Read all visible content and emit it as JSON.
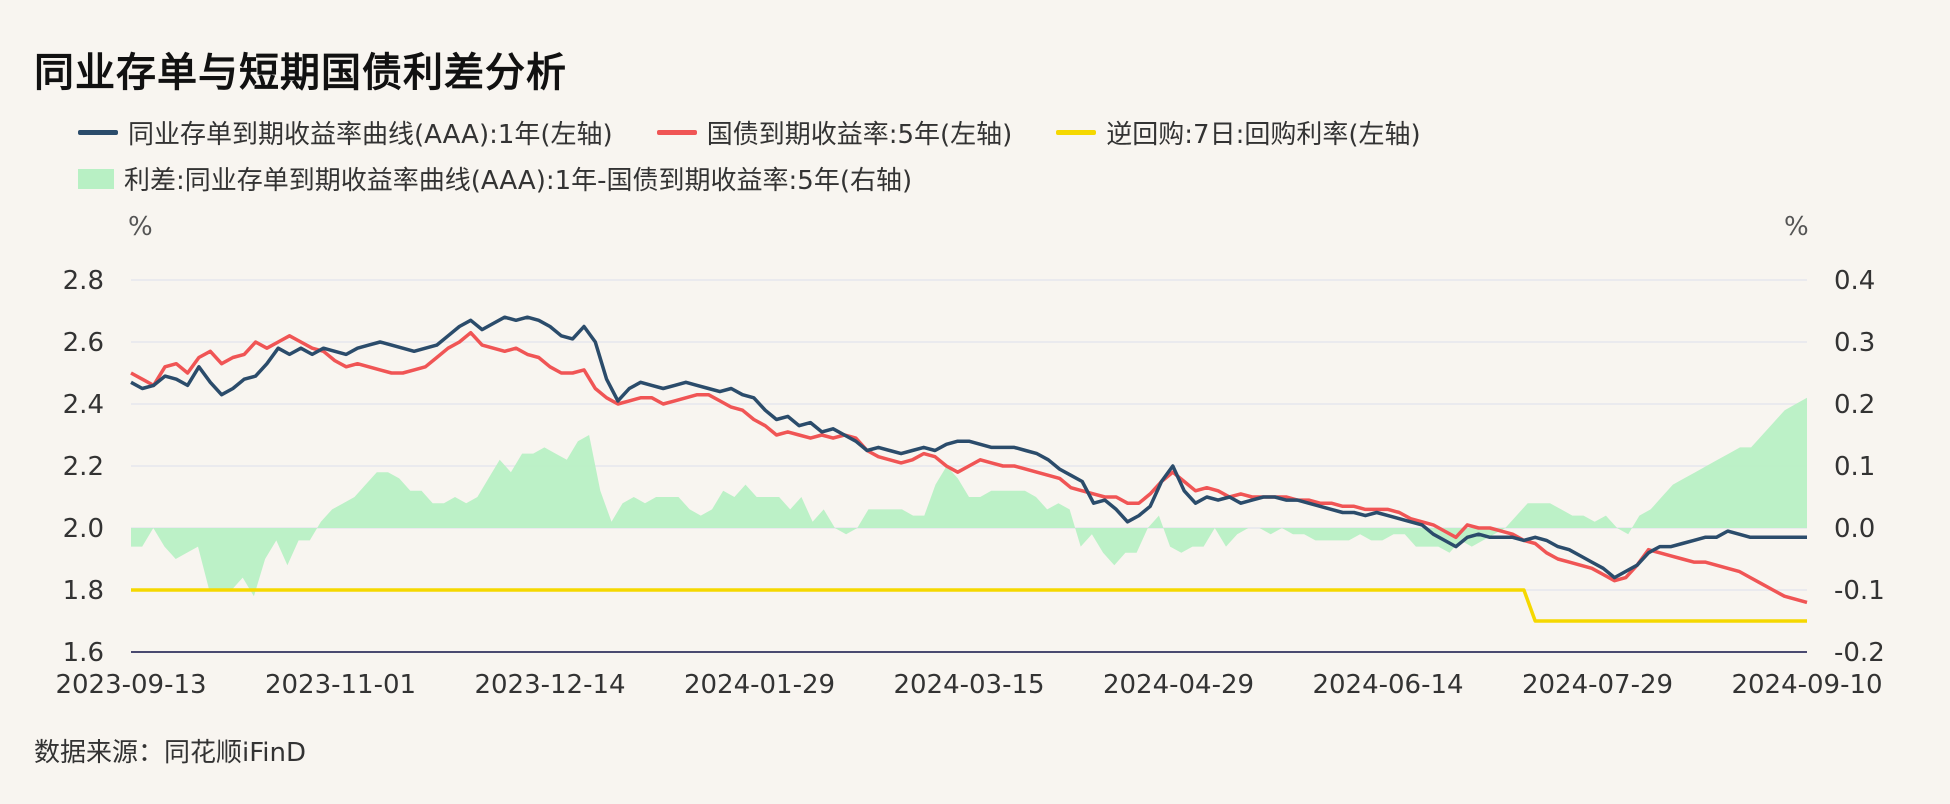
{
  "title": "同业存单与短期国债利差分析",
  "source": "数据来源：同花顺iFinD",
  "colors": {
    "ncd": "#2b4c6b",
    "bond": "#f05555",
    "repo": "#f5d800",
    "spread": "#b8f0c4",
    "grid": "#e6e6ee",
    "axis": "#4a4a70"
  },
  "legend": [
    {
      "label": "同业存单到期收益率曲线(AAA):1年(左轴)",
      "color": "#2b4c6b",
      "type": "line"
    },
    {
      "label": "国债到期收益率:5年(左轴)",
      "color": "#f05555",
      "type": "line"
    },
    {
      "label": "逆回购:7日:回购利率(左轴)",
      "color": "#f5d800",
      "type": "line"
    },
    {
      "label": "利差:同业存单到期收益率曲线(AAA):1年-国债到期收益率:5年(右轴)",
      "color": "#b8f0c4",
      "type": "area"
    }
  ],
  "chart_data": {
    "type": "line",
    "title": "同业存单与短期国债利差分析",
    "ylabel_left": "%",
    "ylabel_right": "%",
    "ylim_left": [
      1.6,
      2.8
    ],
    "ylim_right": [
      -0.2,
      0.4
    ],
    "yticks_left": [
      "1.6",
      "1.8",
      "2.0",
      "2.2",
      "2.4",
      "2.6",
      "2.8"
    ],
    "yticks_right": [
      "-0.2",
      "-0.1",
      "0.0",
      "0.1",
      "0.2",
      "0.3",
      "0.4"
    ],
    "xticks": [
      "2023-09-13",
      "2023-11-01",
      "2023-12-14",
      "2024-01-29",
      "2024-03-15",
      "2024-04-29",
      "2024-06-14",
      "2024-07-29",
      "2024-09-10"
    ],
    "grid": true,
    "legend_position": "top",
    "series": [
      {
        "name": "同业存单到期收益率曲线(AAA):1年(左轴)",
        "axis": "left",
        "values": [
          2.47,
          2.45,
          2.46,
          2.49,
          2.48,
          2.46,
          2.52,
          2.47,
          2.43,
          2.45,
          2.48,
          2.49,
          2.53,
          2.58,
          2.56,
          2.58,
          2.56,
          2.58,
          2.57,
          2.56,
          2.58,
          2.59,
          2.6,
          2.59,
          2.58,
          2.57,
          2.58,
          2.59,
          2.62,
          2.65,
          2.67,
          2.64,
          2.66,
          2.68,
          2.67,
          2.68,
          2.67,
          2.65,
          2.62,
          2.61,
          2.65,
          2.6,
          2.48,
          2.41,
          2.45,
          2.47,
          2.46,
          2.45,
          2.46,
          2.47,
          2.46,
          2.45,
          2.44,
          2.45,
          2.43,
          2.42,
          2.38,
          2.35,
          2.36,
          2.33,
          2.34,
          2.31,
          2.32,
          2.3,
          2.28,
          2.25,
          2.26,
          2.25,
          2.24,
          2.25,
          2.26,
          2.25,
          2.27,
          2.28,
          2.28,
          2.27,
          2.26,
          2.26,
          2.26,
          2.25,
          2.24,
          2.22,
          2.19,
          2.17,
          2.15,
          2.08,
          2.09,
          2.06,
          2.02,
          2.04,
          2.07,
          2.15,
          2.2,
          2.12,
          2.08,
          2.1,
          2.09,
          2.1,
          2.08,
          2.09,
          2.1,
          2.1,
          2.09,
          2.09,
          2.08,
          2.07,
          2.06,
          2.05,
          2.05,
          2.04,
          2.05,
          2.04,
          2.03,
          2.02,
          2.01,
          1.98,
          1.96,
          1.94,
          1.97,
          1.98,
          1.97,
          1.97,
          1.97,
          1.96,
          1.97,
          1.96,
          1.94,
          1.93,
          1.91,
          1.89,
          1.87,
          1.84,
          1.86,
          1.88,
          1.92,
          1.94,
          1.94,
          1.95,
          1.96,
          1.97,
          1.97,
          1.99,
          1.98,
          1.97,
          1.97,
          1.97,
          1.97,
          1.97,
          1.97
        ]
      },
      {
        "name": "国债到期收益率:5年(左轴)",
        "axis": "left",
        "values": [
          2.5,
          2.48,
          2.46,
          2.52,
          2.53,
          2.5,
          2.55,
          2.57,
          2.53,
          2.55,
          2.56,
          2.6,
          2.58,
          2.6,
          2.62,
          2.6,
          2.58,
          2.57,
          2.54,
          2.52,
          2.53,
          2.52,
          2.51,
          2.5,
          2.5,
          2.51,
          2.52,
          2.55,
          2.58,
          2.6,
          2.63,
          2.59,
          2.58,
          2.57,
          2.58,
          2.56,
          2.55,
          2.52,
          2.5,
          2.5,
          2.51,
          2.45,
          2.42,
          2.4,
          2.41,
          2.42,
          2.42,
          2.4,
          2.41,
          2.42,
          2.43,
          2.43,
          2.41,
          2.39,
          2.38,
          2.35,
          2.33,
          2.3,
          2.31,
          2.3,
          2.29,
          2.3,
          2.29,
          2.3,
          2.29,
          2.25,
          2.23,
          2.22,
          2.21,
          2.22,
          2.24,
          2.23,
          2.2,
          2.18,
          2.2,
          2.22,
          2.21,
          2.2,
          2.2,
          2.19,
          2.18,
          2.17,
          2.16,
          2.13,
          2.12,
          2.11,
          2.1,
          2.1,
          2.08,
          2.08,
          2.11,
          2.15,
          2.18,
          2.15,
          2.12,
          2.13,
          2.12,
          2.1,
          2.11,
          2.1,
          2.1,
          2.1,
          2.1,
          2.09,
          2.09,
          2.08,
          2.08,
          2.07,
          2.07,
          2.06,
          2.06,
          2.06,
          2.05,
          2.03,
          2.02,
          2.01,
          1.99,
          1.97,
          2.01,
          2.0,
          2.0,
          1.99,
          1.98,
          1.96,
          1.95,
          1.92,
          1.9,
          1.89,
          1.88,
          1.87,
          1.85,
          1.83,
          1.84,
          1.88,
          1.93,
          1.92,
          1.91,
          1.9,
          1.89,
          1.89,
          1.88,
          1.87,
          1.86,
          1.84,
          1.82,
          1.8,
          1.78,
          1.77,
          1.76
        ]
      },
      {
        "name": "逆回购:7日:回购利率(左轴)",
        "axis": "left",
        "values": [
          1.8,
          1.8,
          1.8,
          1.8,
          1.8,
          1.8,
          1.8,
          1.8,
          1.8,
          1.8,
          1.8,
          1.8,
          1.8,
          1.8,
          1.8,
          1.8,
          1.8,
          1.8,
          1.8,
          1.8,
          1.8,
          1.8,
          1.8,
          1.8,
          1.8,
          1.8,
          1.8,
          1.8,
          1.8,
          1.8,
          1.8,
          1.8,
          1.8,
          1.8,
          1.8,
          1.8,
          1.8,
          1.8,
          1.8,
          1.8,
          1.8,
          1.8,
          1.8,
          1.8,
          1.8,
          1.8,
          1.8,
          1.8,
          1.8,
          1.8,
          1.8,
          1.8,
          1.8,
          1.8,
          1.8,
          1.8,
          1.8,
          1.8,
          1.8,
          1.8,
          1.8,
          1.8,
          1.8,
          1.8,
          1.8,
          1.8,
          1.8,
          1.8,
          1.8,
          1.8,
          1.8,
          1.8,
          1.8,
          1.8,
          1.8,
          1.8,
          1.8,
          1.8,
          1.8,
          1.8,
          1.8,
          1.8,
          1.8,
          1.8,
          1.8,
          1.8,
          1.8,
          1.8,
          1.8,
          1.8,
          1.8,
          1.8,
          1.8,
          1.8,
          1.8,
          1.8,
          1.8,
          1.8,
          1.8,
          1.8,
          1.8,
          1.8,
          1.8,
          1.8,
          1.8,
          1.8,
          1.8,
          1.8,
          1.8,
          1.8,
          1.8,
          1.8,
          1.8,
          1.8,
          1.8,
          1.8,
          1.8,
          1.8,
          1.8,
          1.8,
          1.8,
          1.8,
          1.8,
          1.8,
          1.7,
          1.7,
          1.7,
          1.7,
          1.7,
          1.7,
          1.7,
          1.7,
          1.7,
          1.7,
          1.7,
          1.7,
          1.7,
          1.7,
          1.7,
          1.7,
          1.7,
          1.7,
          1.7,
          1.7,
          1.7,
          1.7,
          1.7,
          1.7,
          1.7
        ]
      },
      {
        "name": "利差:同业存单到期收益率曲线(AAA):1年-国债到期收益率:5年(右轴)",
        "axis": "right",
        "type": "area",
        "values": [
          -0.03,
          -0.03,
          0.0,
          -0.03,
          -0.05,
          -0.04,
          -0.03,
          -0.1,
          -0.1,
          -0.1,
          -0.08,
          -0.11,
          -0.05,
          -0.02,
          -0.06,
          -0.02,
          -0.02,
          0.01,
          0.03,
          0.04,
          0.05,
          0.07,
          0.09,
          0.09,
          0.08,
          0.06,
          0.06,
          0.04,
          0.04,
          0.05,
          0.04,
          0.05,
          0.08,
          0.11,
          0.09,
          0.12,
          0.12,
          0.13,
          0.12,
          0.11,
          0.14,
          0.15,
          0.06,
          0.01,
          0.04,
          0.05,
          0.04,
          0.05,
          0.05,
          0.05,
          0.03,
          0.02,
          0.03,
          0.06,
          0.05,
          0.07,
          0.05,
          0.05,
          0.05,
          0.03,
          0.05,
          0.01,
          0.03,
          0.0,
          -0.01,
          0.0,
          0.03,
          0.03,
          0.03,
          0.03,
          0.02,
          0.02,
          0.07,
          0.1,
          0.08,
          0.05,
          0.05,
          0.06,
          0.06,
          0.06,
          0.06,
          0.05,
          0.03,
          0.04,
          0.03,
          -0.03,
          -0.01,
          -0.04,
          -0.06,
          -0.04,
          -0.04,
          0.0,
          0.02,
          -0.03,
          -0.04,
          -0.03,
          -0.03,
          0.0,
          -0.03,
          -0.01,
          0.0,
          0.0,
          -0.01,
          0.0,
          -0.01,
          -0.01,
          -0.02,
          -0.02,
          -0.02,
          -0.02,
          -0.01,
          -0.02,
          -0.02,
          -0.01,
          -0.01,
          -0.03,
          -0.03,
          -0.03,
          -0.04,
          -0.02,
          -0.03,
          -0.02,
          -0.01,
          0.0,
          0.02,
          0.04,
          0.04,
          0.04,
          0.03,
          0.02,
          0.02,
          0.01,
          0.02,
          0.0,
          -0.01,
          0.02,
          0.03,
          0.05,
          0.07,
          0.08,
          0.09,
          0.1,
          0.11,
          0.12,
          0.13,
          0.13,
          0.15,
          0.17,
          0.19,
          0.2,
          0.21
        ]
      }
    ]
  }
}
